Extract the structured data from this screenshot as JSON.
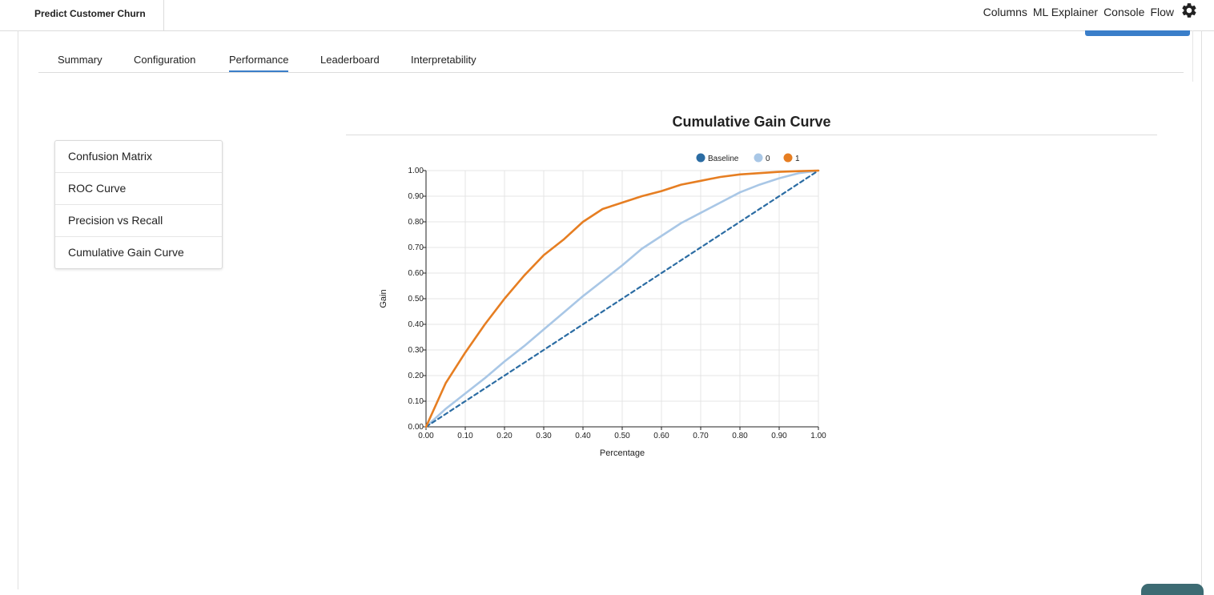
{
  "header": {
    "app_title": "Predict Customer Churn",
    "nav": [
      "Columns",
      "ML Explainer",
      "Console",
      "Flow"
    ],
    "settings_icon": "gear-icon"
  },
  "tabs": [
    {
      "label": "Summary",
      "active": false
    },
    {
      "label": "Configuration",
      "active": false
    },
    {
      "label": "Performance",
      "active": true
    },
    {
      "label": "Leaderboard",
      "active": false
    },
    {
      "label": "Interpretability",
      "active": false
    }
  ],
  "sidebar": {
    "items": [
      "Confusion Matrix",
      "ROC Curve",
      "Precision vs Recall",
      "Cumulative Gain Curve"
    ]
  },
  "chart_data": {
    "type": "line",
    "title": "Cumulative Gain Curve",
    "xlabel": "Percentage",
    "ylabel": "Gain",
    "xlim": [
      0,
      1
    ],
    "ylim": [
      0,
      1
    ],
    "xticks": [
      "0.00",
      "0.10",
      "0.20",
      "0.30",
      "0.40",
      "0.50",
      "0.60",
      "0.70",
      "0.80",
      "0.90",
      "1.00"
    ],
    "yticks": [
      "0.00",
      "0.10",
      "0.20",
      "0.30",
      "0.40",
      "0.50",
      "0.60",
      "0.70",
      "0.80",
      "0.90",
      "1.00"
    ],
    "grid": true,
    "legend_position": "top-right",
    "series": [
      {
        "name": "Baseline",
        "color": "#2b6ca3",
        "style": "dashed",
        "x": [
          0,
          1
        ],
        "y": [
          0,
          1
        ]
      },
      {
        "name": "0",
        "color": "#a9c7e6",
        "style": "solid",
        "x": [
          0,
          0.05,
          0.1,
          0.15,
          0.2,
          0.25,
          0.3,
          0.35,
          0.4,
          0.45,
          0.5,
          0.55,
          0.6,
          0.65,
          0.7,
          0.75,
          0.8,
          0.85,
          0.9,
          0.95,
          1.0
        ],
        "y": [
          0,
          0.07,
          0.13,
          0.19,
          0.255,
          0.315,
          0.38,
          0.445,
          0.51,
          0.57,
          0.63,
          0.695,
          0.745,
          0.795,
          0.835,
          0.875,
          0.915,
          0.945,
          0.97,
          0.99,
          1.0
        ]
      },
      {
        "name": "1",
        "color": "#e67e22",
        "style": "solid",
        "x": [
          0,
          0.05,
          0.1,
          0.15,
          0.2,
          0.25,
          0.3,
          0.35,
          0.4,
          0.45,
          0.5,
          0.55,
          0.6,
          0.65,
          0.7,
          0.75,
          0.8,
          0.85,
          0.9,
          0.95,
          1.0
        ],
        "y": [
          0,
          0.17,
          0.29,
          0.4,
          0.5,
          0.59,
          0.67,
          0.73,
          0.8,
          0.85,
          0.875,
          0.9,
          0.92,
          0.945,
          0.96,
          0.975,
          0.985,
          0.99,
          0.995,
          0.998,
          1.0
        ]
      }
    ]
  }
}
